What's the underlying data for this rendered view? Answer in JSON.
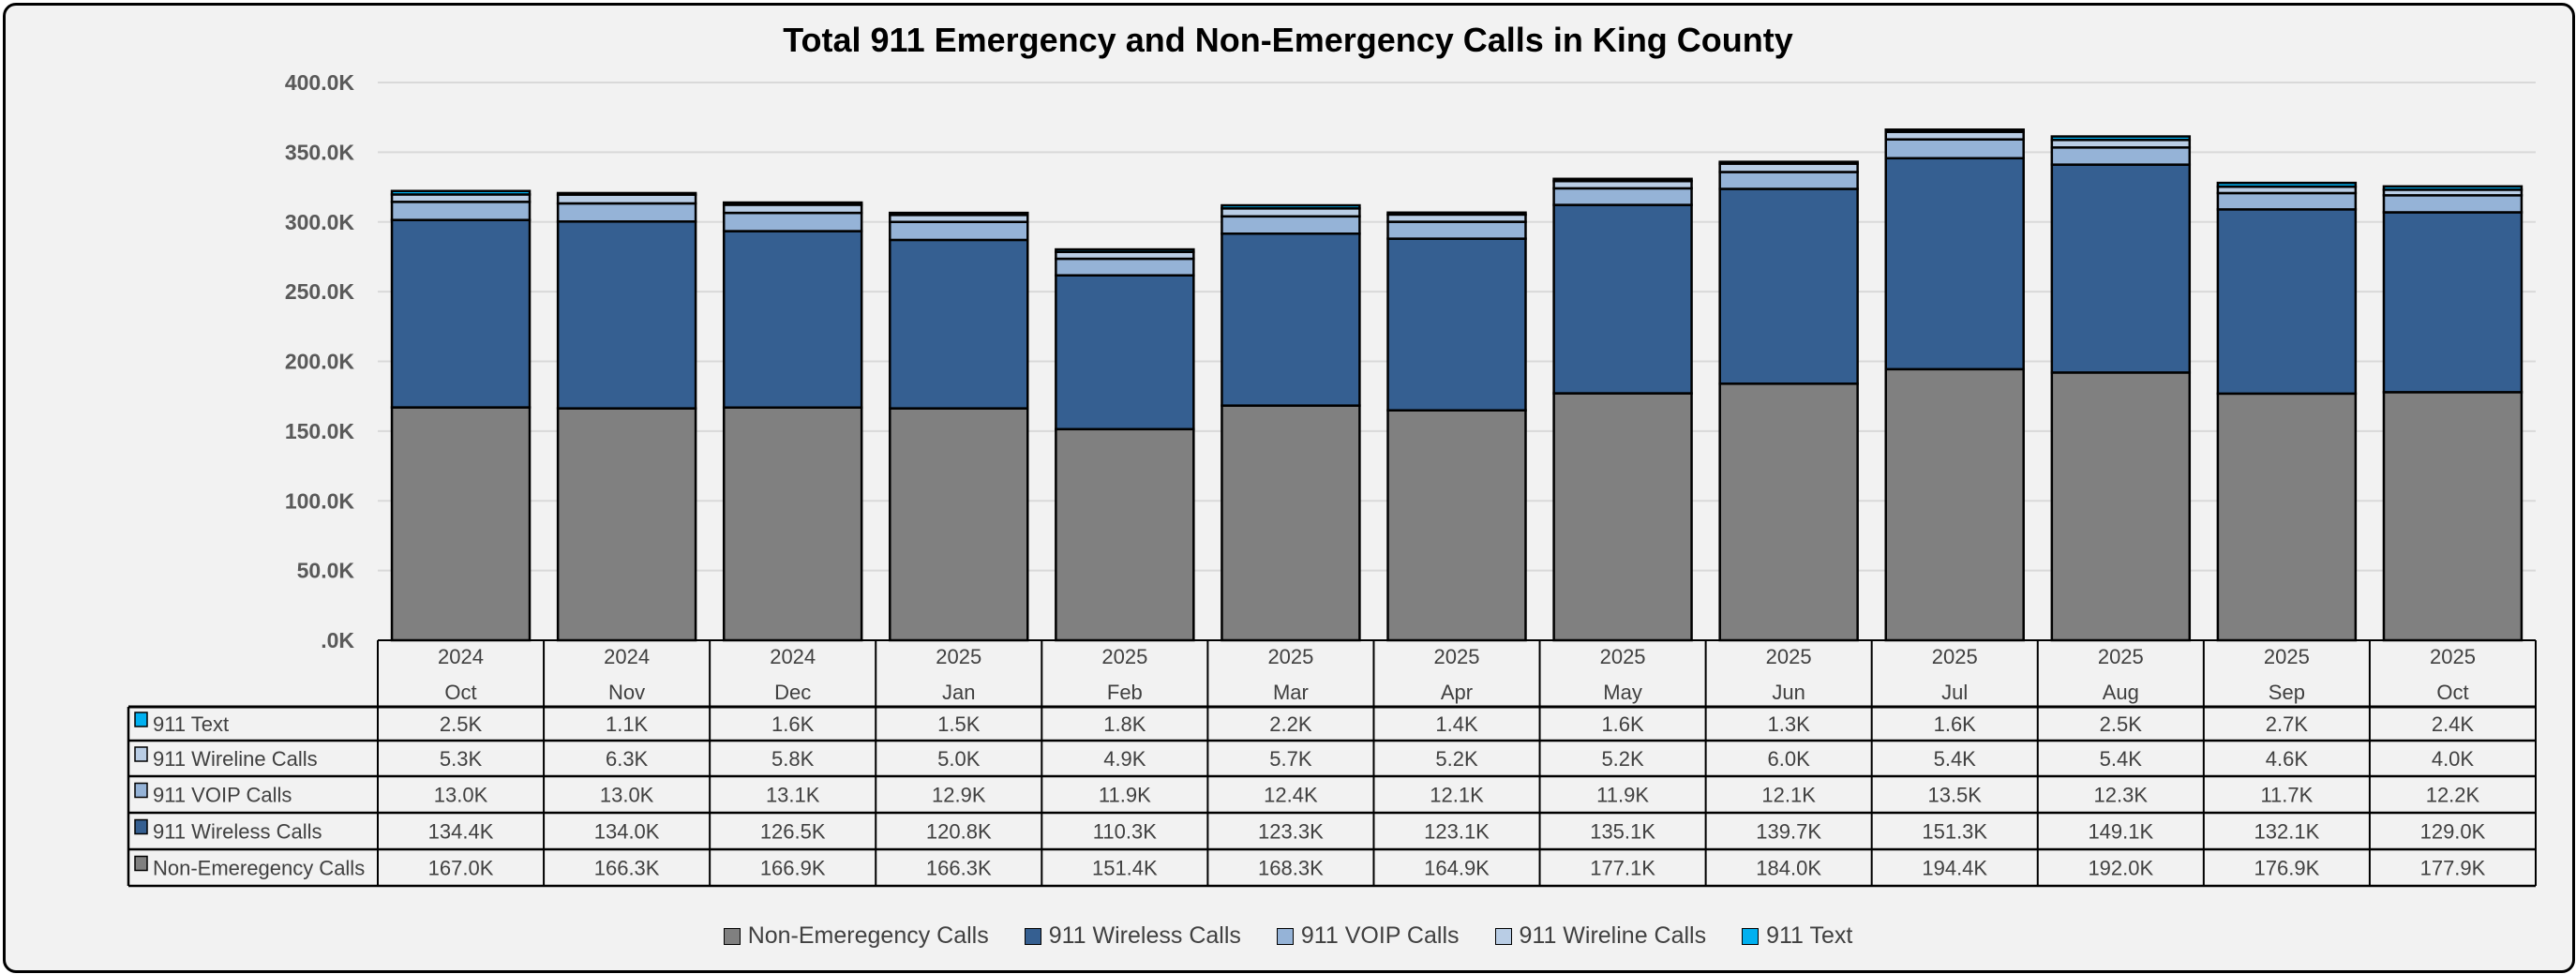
{
  "chart_data": {
    "type": "bar",
    "stacked": true,
    "title": "Total 911 Emergency and Non-Emergency Calls in King County",
    "ylim": [
      0,
      400000
    ],
    "yticks": [
      ".0K",
      "50.0K",
      "100.0K",
      "150.0K",
      "200.0K",
      "250.0K",
      "300.0K",
      "350.0K",
      "400.0K"
    ],
    "grid": true,
    "legend_position": "bottom",
    "years": [
      "2024",
      "2024",
      "2024",
      "2025",
      "2025",
      "2025",
      "2025",
      "2025",
      "2025",
      "2025",
      "2025",
      "2025",
      "2025"
    ],
    "categories": [
      "Oct",
      "Nov",
      "Dec",
      "Jan",
      "Feb",
      "Mar",
      "Apr",
      "May",
      "Jun",
      "Jul",
      "Aug",
      "Sep",
      "Oct"
    ],
    "series": [
      {
        "name": "Non-Emeregency Calls",
        "color": "#808080",
        "values": [
          167000,
          166300,
          166900,
          166300,
          151400,
          168300,
          164900,
          177100,
          184000,
          194400,
          192000,
          176900,
          177900
        ],
        "labels": [
          "167.0K",
          "166.3K",
          "166.9K",
          "166.3K",
          "151.4K",
          "168.3K",
          "164.9K",
          "177.1K",
          "184.0K",
          "194.4K",
          "192.0K",
          "176.9K",
          "177.9K"
        ]
      },
      {
        "name": "911 Wireless Calls",
        "color": "#355f91",
        "values": [
          134400,
          134000,
          126500,
          120800,
          110300,
          123300,
          123100,
          135100,
          139700,
          151300,
          149100,
          132100,
          129000
        ],
        "labels": [
          "134.4K",
          "134.0K",
          "126.5K",
          "120.8K",
          "110.3K",
          "123.3K",
          "123.1K",
          "135.1K",
          "139.7K",
          "151.3K",
          "149.1K",
          "132.1K",
          "129.0K"
        ]
      },
      {
        "name": "911 VOIP Calls",
        "color": "#95b3d7",
        "values": [
          13000,
          13000,
          13100,
          12900,
          11900,
          12400,
          12100,
          11900,
          12100,
          13500,
          12300,
          11700,
          12200
        ],
        "labels": [
          "13.0K",
          "13.0K",
          "13.1K",
          "12.9K",
          "11.9K",
          "12.4K",
          "12.1K",
          "11.9K",
          "12.1K",
          "13.5K",
          "12.3K",
          "11.7K",
          "12.2K"
        ]
      },
      {
        "name": "911 Wireline Calls",
        "color": "#b9cde5",
        "values": [
          5300,
          6300,
          5800,
          5000,
          4900,
          5700,
          5200,
          5200,
          6000,
          5400,
          5400,
          4600,
          4000
        ],
        "labels": [
          "5.3K",
          "6.3K",
          "5.8K",
          "5.0K",
          "4.9K",
          "5.7K",
          "5.2K",
          "5.2K",
          "6.0K",
          "5.4K",
          "5.4K",
          "4.6K",
          "4.0K"
        ]
      },
      {
        "name": "911 Text",
        "color": "#00b0f0",
        "values": [
          2500,
          1100,
          1600,
          1500,
          1800,
          2200,
          1400,
          1600,
          1300,
          1600,
          2500,
          2700,
          2400
        ],
        "labels": [
          "2.5K",
          "1.1K",
          "1.6K",
          "1.5K",
          "1.8K",
          "2.2K",
          "1.4K",
          "1.6K",
          "1.3K",
          "1.6K",
          "2.5K",
          "2.7K",
          "2.4K"
        ]
      }
    ],
    "table_row_order": [
      "911 Text",
      "911 Wireline Calls",
      "911 VOIP Calls",
      "911 Wireless Calls",
      "Non-Emeregency Calls"
    ]
  }
}
